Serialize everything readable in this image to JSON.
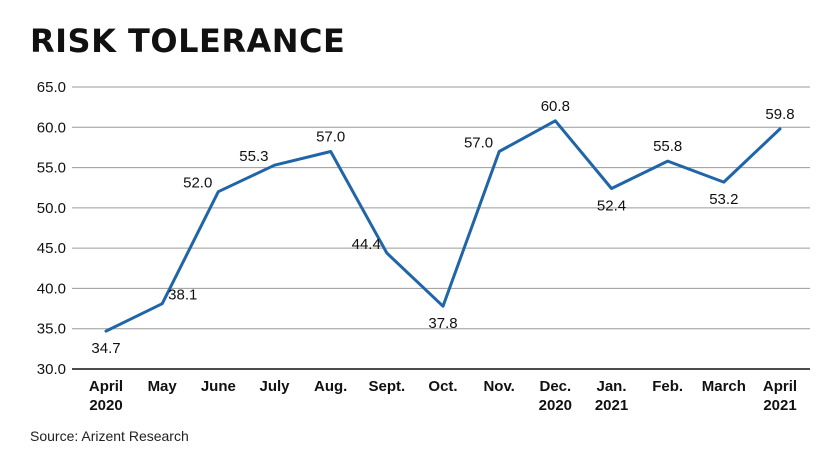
{
  "chart_data": {
    "type": "line",
    "title": "RISK TOLERANCE",
    "xlabel": "",
    "ylabel": "",
    "categories": [
      [
        "April",
        "2020"
      ],
      [
        "May"
      ],
      [
        "June"
      ],
      [
        "July"
      ],
      [
        "Aug."
      ],
      [
        "Sept."
      ],
      [
        "Oct."
      ],
      [
        "Nov."
      ],
      [
        "Dec.",
        "2020"
      ],
      [
        "Jan.",
        "2021"
      ],
      [
        "Feb."
      ],
      [
        "March"
      ],
      [
        "April",
        "2021"
      ]
    ],
    "series": [
      {
        "values": [
          34.7,
          38.1,
          52.0,
          55.3,
          57.0,
          44.4,
          37.8,
          57.0,
          60.8,
          52.4,
          55.8,
          53.2,
          59.8
        ],
        "labels": [
          "34.7",
          "38.1",
          "52.0",
          "55.3",
          "57.0",
          "44.4",
          "37.8",
          "57.0",
          "60.8",
          "52.4",
          "55.8",
          "53.2",
          "59.8"
        ],
        "color": "#1f65a8"
      }
    ],
    "ylim": [
      30.0,
      65.0
    ],
    "yticks": [
      "30.0",
      "35.0",
      "40.0",
      "45.0",
      "50.0",
      "55.0",
      "60.0",
      "65.0"
    ],
    "grid": "horizontal",
    "legend": "none"
  },
  "source": "Source: Arizent Research"
}
